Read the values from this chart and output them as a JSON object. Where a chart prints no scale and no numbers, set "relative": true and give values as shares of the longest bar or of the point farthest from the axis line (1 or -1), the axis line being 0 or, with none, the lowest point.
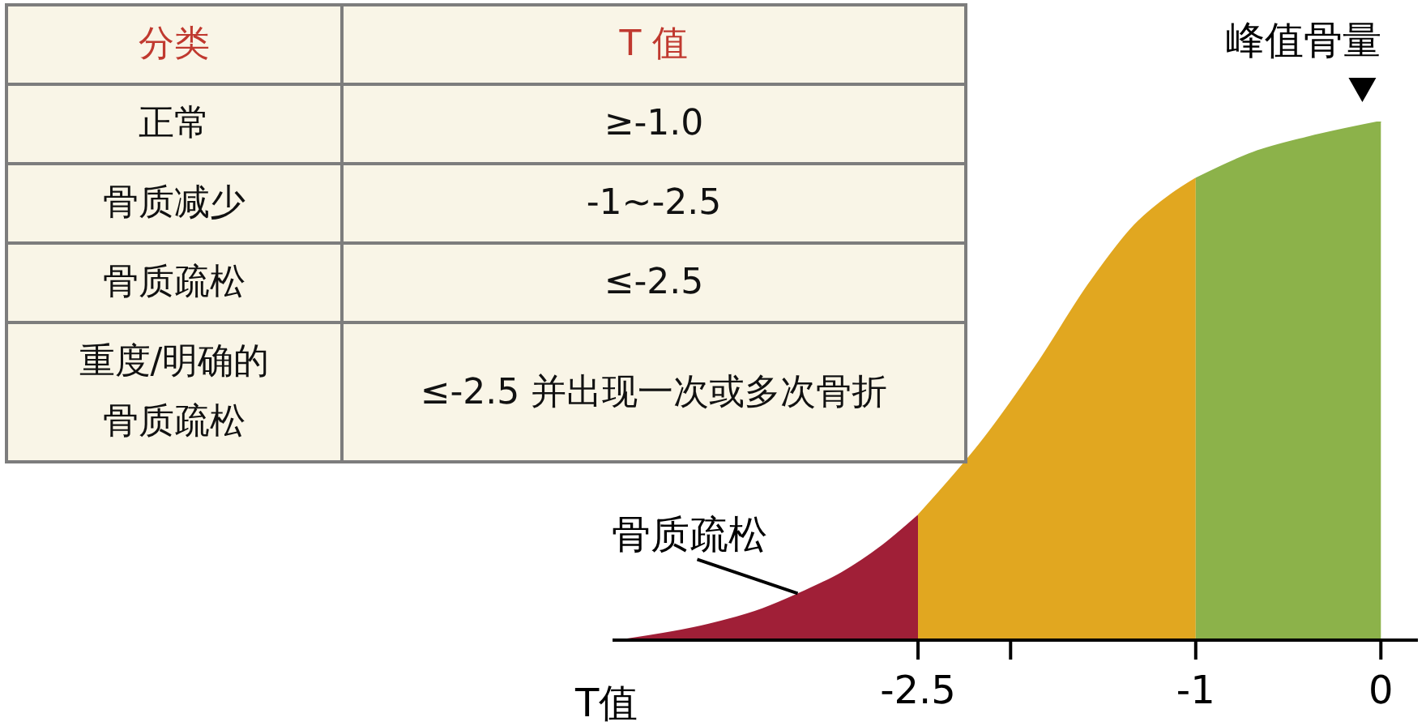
{
  "chart_data": [
    {
      "type": "other",
      "annotations": [
        "分类",
        "T 值",
        "正常",
        "≥-1.0",
        "骨质减少",
        "-1~-2.5",
        "骨质疏松",
        "≤-2.5",
        "重度/明确的骨质疏松",
        "≤-2.5 并出现一次或多次骨折"
      ]
    },
    {
      "type": "area",
      "relative": true,
      "xlabel": "T值",
      "xlim": [
        -4.15,
        0.2
      ],
      "xticks": [
        -2.5,
        {
          "value": -2,
          "label": null
        },
        -1,
        0
      ],
      "series": [
        {
          "color": "#a01f37",
          "x": [
            -4.1,
            -3.63,
            -3.34,
            -3.14,
            -2.91,
            -2.7,
            -2.5
          ],
          "values": [
            0,
            0.03,
            0.06,
            0.09,
            0.13,
            0.18,
            0.24
          ]
        },
        {
          "color": "#e1a720",
          "x": [
            -2.5,
            -2.14,
            -1.86,
            -1.57,
            -1.33,
            -1.13,
            -1
          ],
          "values": [
            0.24,
            0.39,
            0.53,
            0.69,
            0.8,
            0.86,
            0.89
          ]
        },
        {
          "color": "#8cb24a",
          "x": [
            -1,
            -0.69,
            -0.39,
            0
          ],
          "values": [
            0.89,
            0.94,
            0.97,
            1
          ]
        }
      ],
      "annotations": [
        {
          "text": "骨质疏松",
          "x": -3.15,
          "y": 0.09
        },
        {
          "text": "峰值骨量",
          "x": -0.1,
          "y": 1
        }
      ]
    }
  ]
}
